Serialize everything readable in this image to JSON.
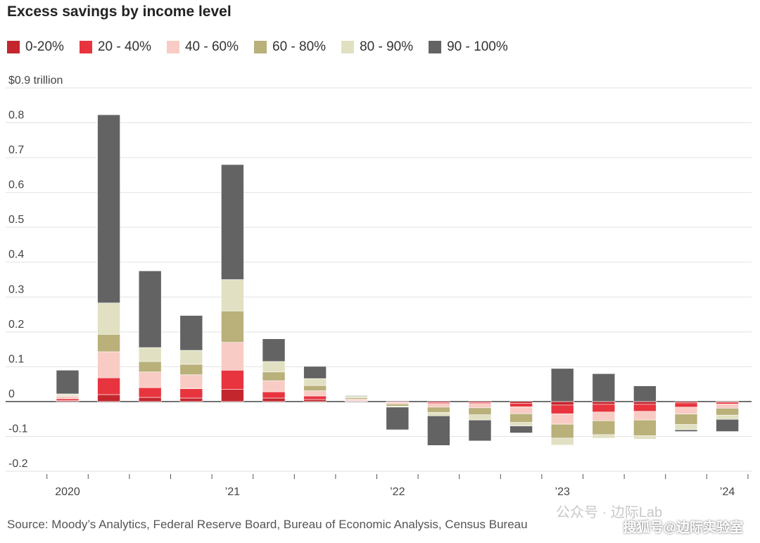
{
  "title": "Excess savings by income level",
  "source": "Source: Moody’s Analytics, Federal Reserve Board, Bureau of Economic Analysis, Census Bureau",
  "watermark_wechat": "公众号 · 边际Lab",
  "watermark_sohu": "搜狐号@边际实验室",
  "chart_data": {
    "type": "bar",
    "stacked": true,
    "title": "Excess savings by income level",
    "ylabel_top": "$0.9 trillion",
    "ylim": [
      -0.2,
      0.9
    ],
    "yticks": [
      {
        "value": 0.9,
        "label": "$0.9 trillion"
      },
      {
        "value": 0.8,
        "label": "0.8"
      },
      {
        "value": 0.7,
        "label": "0.7"
      },
      {
        "value": 0.6,
        "label": "0.6"
      },
      {
        "value": 0.5,
        "label": "0.5"
      },
      {
        "value": 0.4,
        "label": "0.4"
      },
      {
        "value": 0.3,
        "label": "0.3"
      },
      {
        "value": 0.2,
        "label": "0.2"
      },
      {
        "value": 0.1,
        "label": "0.1"
      },
      {
        "value": 0.0,
        "label": "0"
      },
      {
        "value": -0.1,
        "label": "-0.1"
      },
      {
        "value": -0.2,
        "label": "-0.2"
      }
    ],
    "grid": true,
    "legend_position": "top",
    "categories": [
      "2020 Q1",
      "2020 Q2",
      "2020 Q3",
      "2020 Q4",
      "2021 Q1",
      "2021 Q2",
      "2021 Q3",
      "2021 Q4",
      "2022 Q1",
      "2022 Q2",
      "2022 Q3",
      "2022 Q4",
      "2023 Q1",
      "2023 Q2",
      "2023 Q3",
      "2023 Q4",
      "2024 Q1"
    ],
    "xtick_labels": [
      {
        "index": 0,
        "label": "2020"
      },
      {
        "index": 4,
        "label": "’21"
      },
      {
        "index": 8,
        "label": "’22"
      },
      {
        "index": 12,
        "label": "’23"
      },
      {
        "index": 16,
        "label": "’24"
      }
    ],
    "series": [
      {
        "name": "0-20%",
        "color": "#c4262e",
        "values": [
          0.003,
          0.02,
          0.012,
          0.01,
          0.035,
          0.01,
          0.006,
          0.001,
          -0.001,
          -0.003,
          -0.003,
          -0.005,
          -0.01,
          -0.008,
          -0.008,
          -0.004,
          -0.002
        ]
      },
      {
        "name": "20 - 40%",
        "color": "#e8343e",
        "values": [
          0.005,
          0.048,
          0.028,
          0.027,
          0.055,
          0.018,
          0.01,
          0.002,
          -0.002,
          -0.003,
          -0.003,
          -0.01,
          -0.025,
          -0.022,
          -0.02,
          -0.012,
          -0.005
        ]
      },
      {
        "name": "40 - 60%",
        "color": "#f8ccc4",
        "values": [
          0.008,
          0.075,
          0.045,
          0.04,
          0.08,
          0.032,
          0.015,
          0.004,
          -0.004,
          -0.01,
          -0.012,
          -0.02,
          -0.03,
          -0.025,
          -0.025,
          -0.02,
          -0.012
        ]
      },
      {
        "name": "60 - 80%",
        "color": "#b9b07a",
        "values": [
          0.002,
          0.05,
          0.03,
          0.03,
          0.09,
          0.025,
          0.015,
          0.004,
          -0.006,
          -0.015,
          -0.02,
          -0.025,
          -0.04,
          -0.04,
          -0.045,
          -0.03,
          -0.02
        ]
      },
      {
        "name": "80 - 90%",
        "color": "#e1e0c2",
        "values": [
          0.004,
          0.09,
          0.04,
          0.04,
          0.09,
          0.03,
          0.02,
          0.004,
          -0.003,
          -0.01,
          -0.015,
          -0.01,
          -0.02,
          -0.01,
          -0.01,
          -0.015,
          -0.012
        ]
      },
      {
        "name": "90 - 100%",
        "color": "#636363",
        "values": [
          0.068,
          0.54,
          0.22,
          0.1,
          0.33,
          0.065,
          0.035,
          0.002,
          -0.065,
          -0.085,
          -0.06,
          -0.02,
          0.095,
          0.08,
          0.045,
          -0.005,
          -0.035
        ]
      }
    ]
  }
}
